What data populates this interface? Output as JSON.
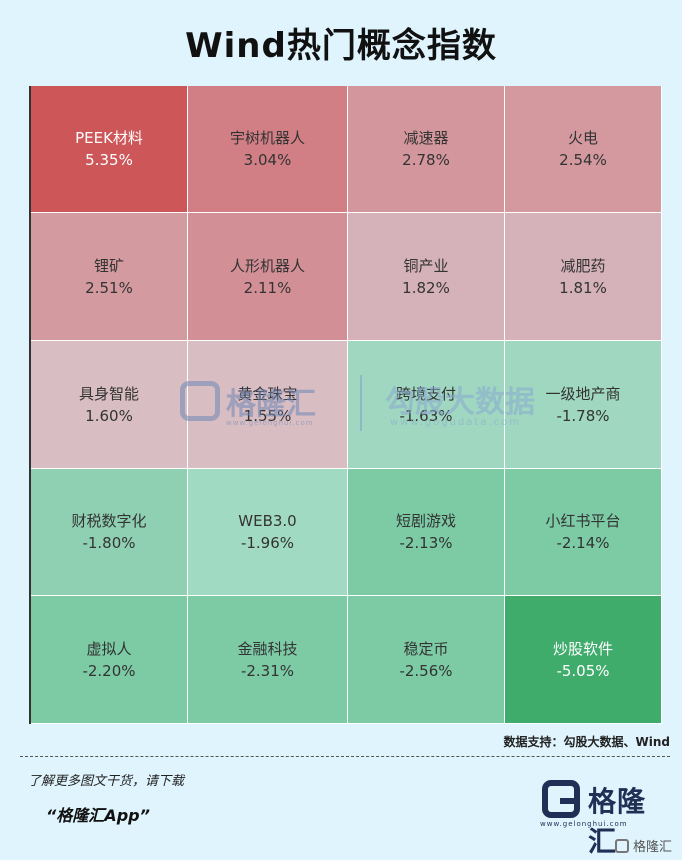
{
  "title": "Wind热门概念指数",
  "chart_data": {
    "type": "table",
    "title": "Wind热门概念指数",
    "cells": [
      {
        "name": "PEEK材料",
        "value": "5.35%",
        "color": "#cd5658",
        "dark": true
      },
      {
        "name": "宇树机器人",
        "value": "3.04%",
        "color": "#d17f85",
        "dark": false
      },
      {
        "name": "减速器",
        "value": "2.78%",
        "color": "#d3969c",
        "dark": false
      },
      {
        "name": "火电",
        "value": "2.54%",
        "color": "#d3999f",
        "dark": false
      },
      {
        "name": "锂矿",
        "value": "2.51%",
        "color": "#d39aa0",
        "dark": false
      },
      {
        "name": "人形机器人",
        "value": "2.11%",
        "color": "#d38f96",
        "dark": false
      },
      {
        "name": "铜产业",
        "value": "1.82%",
        "color": "#d5b2ba",
        "dark": false
      },
      {
        "name": "减肥药",
        "value": "1.81%",
        "color": "#d5b2ba",
        "dark": false
      },
      {
        "name": "具身智能",
        "value": "1.60%",
        "color": "#d8bdc3",
        "dark": false
      },
      {
        "name": "黄金珠宝",
        "value": "1.55%",
        "color": "#d8bdc3",
        "dark": false
      },
      {
        "name": "跨境支付",
        "value": "-1.63%",
        "color": "#9fd7c0",
        "dark": false
      },
      {
        "name": "一级地产商",
        "value": "-1.78%",
        "color": "#9fd7c0",
        "dark": false
      },
      {
        "name": "财税数字化",
        "value": "-1.80%",
        "color": "#8fd0b2",
        "dark": false
      },
      {
        "name": "WEB3.0",
        "value": "-1.96%",
        "color": "#a1dac3",
        "dark": false
      },
      {
        "name": "短剧游戏",
        "value": "-2.13%",
        "color": "#7ccba5",
        "dark": false
      },
      {
        "name": "小红书平台",
        "value": "-2.14%",
        "color": "#7ccba5",
        "dark": false
      },
      {
        "name": "虚拟人",
        "value": "-2.20%",
        "color": "#7ccba5",
        "dark": false
      },
      {
        "name": "金融科技",
        "value": "-2.31%",
        "color": "#7ccba5",
        "dark": false
      },
      {
        "name": "稳定币",
        "value": "-2.56%",
        "color": "#7ccba5",
        "dark": false
      },
      {
        "name": "炒股软件",
        "value": "-5.05%",
        "color": "#3fac6c",
        "dark": true
      }
    ]
  },
  "watermark": {
    "brand": "格隆汇",
    "brand_url": "www.gelonghui.com",
    "right_text": "勾股大数据",
    "right_url": "www.gogudata.com"
  },
  "source": "数据支持：勾股大数据、Wind",
  "footer": {
    "line1": "了解更多图文干货，请下载",
    "line2": "“格隆汇App”"
  },
  "logo": {
    "text": "格隆汇",
    "sub": "www.gelonghui.com",
    "small_text": "格隆汇"
  }
}
